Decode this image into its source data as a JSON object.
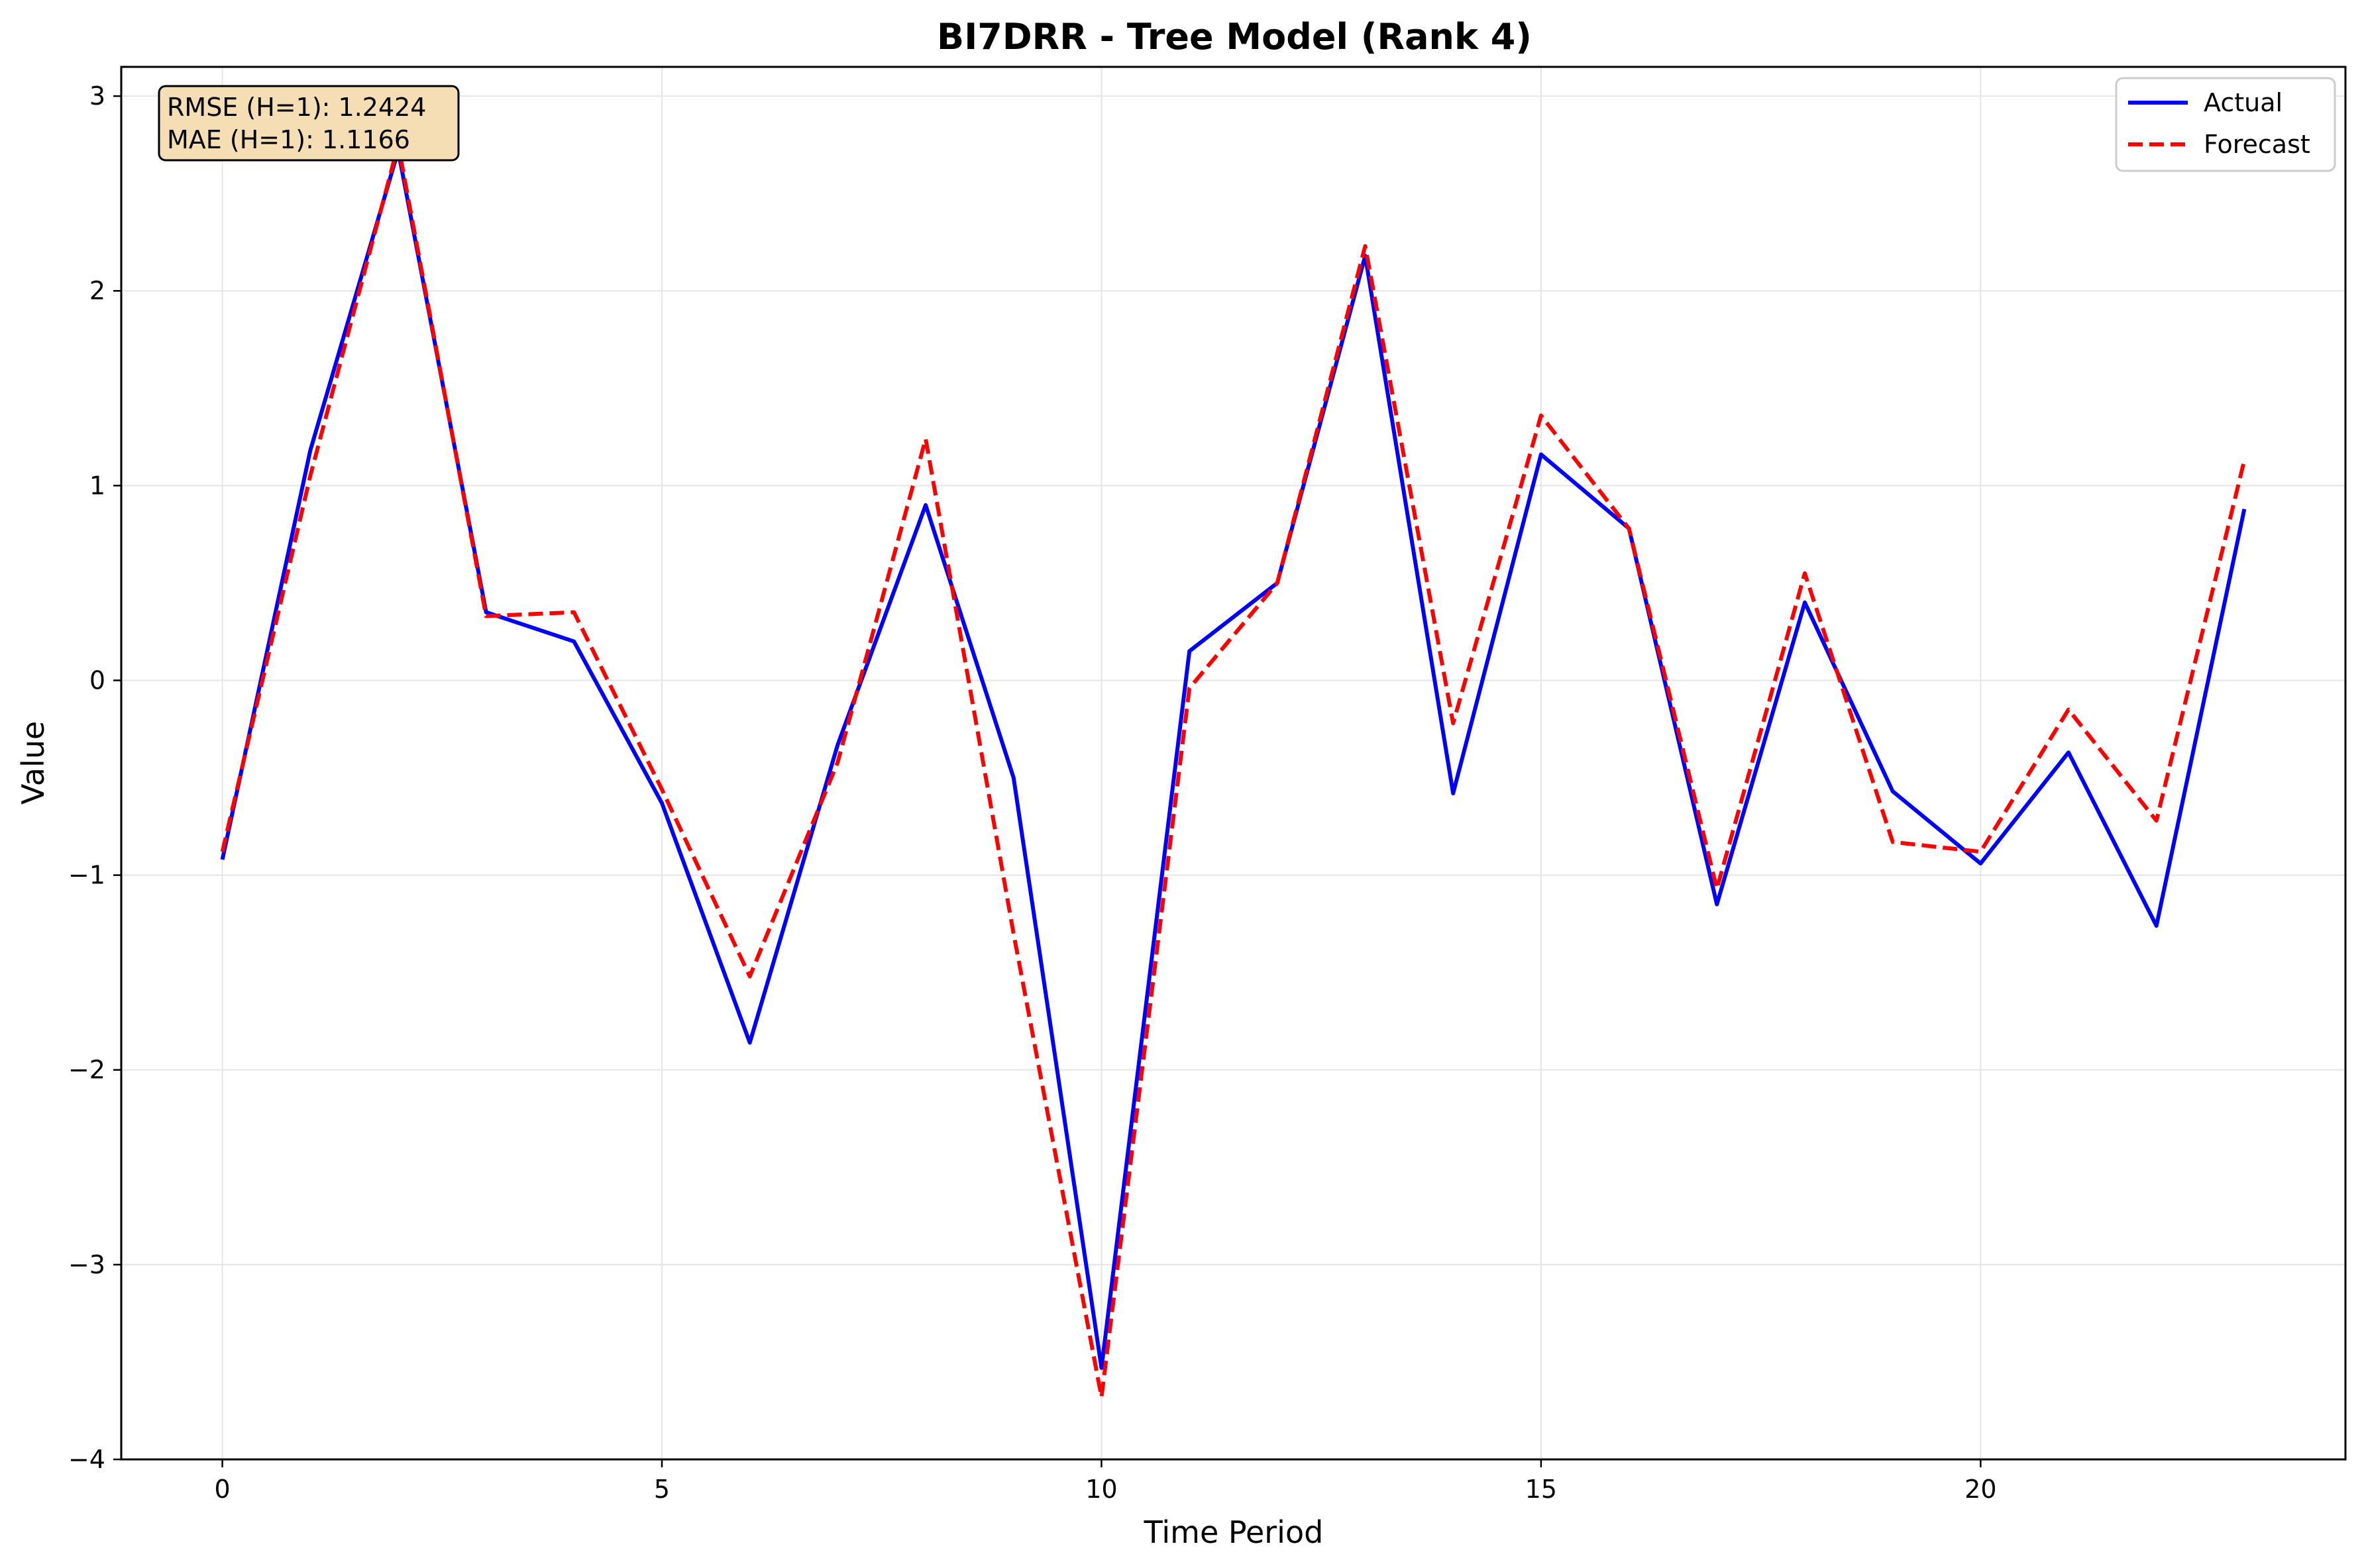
{
  "chart_data": {
    "type": "line",
    "title": "BI7DRR - Tree Model (Rank 4)",
    "xlabel": "Time Period",
    "ylabel": "Value",
    "xlim": [
      -1.15,
      24.15
    ],
    "ylim": [
      -4,
      3.15
    ],
    "xticks": [
      0,
      5,
      10,
      15,
      20
    ],
    "yticks": [
      -4,
      -3,
      -2,
      -1,
      0,
      1,
      2,
      3
    ],
    "grid": true,
    "legend_position": "top-right",
    "x": [
      0,
      1,
      2,
      3,
      4,
      5,
      6,
      7,
      8,
      9,
      10,
      11,
      12,
      13,
      14,
      15,
      16,
      17,
      18,
      19,
      20,
      21,
      22,
      23
    ],
    "series": [
      {
        "name": "Actual",
        "color": "#0000ff",
        "style": "solid",
        "values": [
          -0.92,
          1.18,
          2.72,
          0.35,
          0.2,
          -0.63,
          -1.86,
          -0.33,
          0.9,
          -0.5,
          -3.53,
          0.15,
          0.5,
          2.18,
          -0.58,
          1.16,
          0.78,
          -1.15,
          0.4,
          -0.57,
          -0.94,
          -0.37,
          -1.26,
          0.88
        ]
      },
      {
        "name": "Forecast",
        "color": "#ff0000",
        "style": "dashed",
        "values": [
          -0.88,
          1.05,
          2.75,
          0.33,
          0.35,
          -0.56,
          -1.52,
          -0.42,
          1.24,
          -1.3,
          -3.68,
          -0.04,
          0.5,
          2.23,
          -0.22,
          1.36,
          0.78,
          -1.07,
          0.55,
          -0.83,
          -0.88,
          -0.15,
          -0.72,
          1.13
        ]
      }
    ],
    "annotations": {
      "rmse": "RMSE (H=1): 1.2424",
      "mae": "MAE (H=1): 1.1166"
    }
  }
}
